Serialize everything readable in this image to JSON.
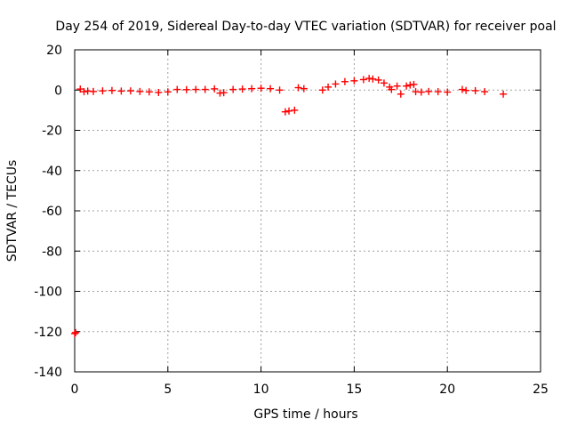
{
  "chart_data": {
    "type": "scatter",
    "title": "Day 254 of 2019, Sidereal Day-to-day VTEC variation (SDTVAR) for receiver poal",
    "xlabel": "GPS time / hours",
    "ylabel": "SDTVAR / TECUs",
    "xlim": [
      0,
      25
    ],
    "ylim": [
      -140,
      20
    ],
    "xticks": [
      0,
      5,
      10,
      15,
      20,
      25
    ],
    "xtick_labels": [
      "0",
      "5",
      "10",
      "15",
      "20",
      "25"
    ],
    "yticks": [
      20,
      0,
      -20,
      -40,
      -60,
      -80,
      -100,
      -120,
      -140
    ],
    "ytick_labels": [
      "20",
      "0",
      "-20",
      "-40",
      "-60",
      "-80",
      "-100",
      "-120",
      "-140"
    ],
    "grid": true,
    "marker": "+",
    "colors": {
      "series": "#ff0000",
      "axes": "#000000",
      "grid": "#a0a0a0"
    },
    "series": [
      {
        "name": "SDTVAR",
        "points": [
          [
            0.0,
            -121
          ],
          [
            0.05,
            -120.5
          ],
          [
            0.3,
            0.5
          ],
          [
            0.5,
            -0.8
          ],
          [
            0.7,
            -0.5
          ],
          [
            1.0,
            -0.7
          ],
          [
            1.5,
            -0.4
          ],
          [
            2.0,
            -0.2
          ],
          [
            2.5,
            -0.5
          ],
          [
            3.0,
            -0.4
          ],
          [
            3.5,
            -0.7
          ],
          [
            4.0,
            -0.9
          ],
          [
            4.5,
            -1.2
          ],
          [
            5.0,
            -0.9
          ],
          [
            5.5,
            0.3
          ],
          [
            6.0,
            0.2
          ],
          [
            6.5,
            0.3
          ],
          [
            7.0,
            0.3
          ],
          [
            7.5,
            0.6
          ],
          [
            7.8,
            -1.5
          ],
          [
            8.0,
            -1.3
          ],
          [
            8.5,
            0.3
          ],
          [
            9.0,
            0.5
          ],
          [
            9.5,
            0.7
          ],
          [
            10.0,
            0.9
          ],
          [
            10.5,
            0.7
          ],
          [
            11.0,
            0.0
          ],
          [
            11.3,
            -10.8
          ],
          [
            11.5,
            -10.4
          ],
          [
            11.8,
            -10.0
          ],
          [
            12.0,
            1.2
          ],
          [
            12.3,
            0.7
          ],
          [
            13.3,
            0.0
          ],
          [
            13.6,
            1.5
          ],
          [
            14.0,
            3.0
          ],
          [
            14.5,
            4.2
          ],
          [
            15.0,
            4.6
          ],
          [
            15.5,
            5.2
          ],
          [
            15.8,
            5.8
          ],
          [
            16.0,
            5.5
          ],
          [
            16.3,
            5.0
          ],
          [
            16.6,
            3.5
          ],
          [
            16.9,
            1.5
          ],
          [
            17.0,
            0.3
          ],
          [
            17.3,
            2.0
          ],
          [
            17.5,
            -2.0
          ],
          [
            17.8,
            2.0
          ],
          [
            18.0,
            2.5
          ],
          [
            18.2,
            2.8
          ],
          [
            18.3,
            -0.8
          ],
          [
            18.6,
            -1.0
          ],
          [
            19.0,
            -0.7
          ],
          [
            19.5,
            -0.8
          ],
          [
            20.0,
            -1.0
          ],
          [
            20.8,
            0.3
          ],
          [
            21.0,
            -0.2
          ],
          [
            21.5,
            -0.3
          ],
          [
            22.0,
            -0.8
          ],
          [
            23.0,
            -2.0
          ]
        ]
      }
    ]
  }
}
